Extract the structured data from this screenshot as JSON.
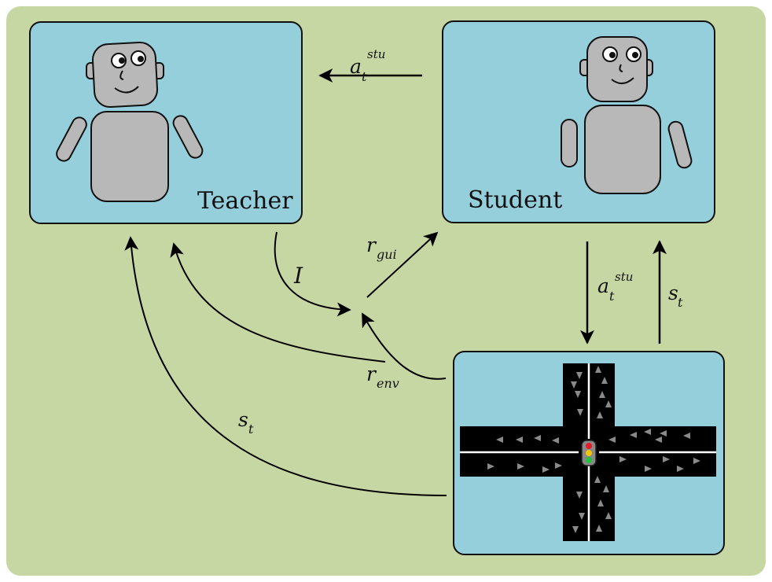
{
  "teacher": {
    "label": "Teacher"
  },
  "student": {
    "label": "Student"
  },
  "arrows": {
    "action_to_teacher": {
      "base": "a",
      "sub": "t",
      "sup": "stu"
    },
    "action_to_env": {
      "base": "a",
      "sub": "t",
      "sup": "stu"
    },
    "state_to_student": {
      "base": "s",
      "sub": "t"
    },
    "state_to_teacher": {
      "base": "s",
      "sub": "t"
    },
    "intervention": {
      "base": "I"
    },
    "reward_guide": {
      "base": "r",
      "sub": "gui"
    },
    "reward_env": {
      "base": "r",
      "sub": "env"
    }
  },
  "colors": {
    "background": "#c6d7a3",
    "panel": "#95cfdc",
    "robot": "#b8b8b8",
    "road": "#000000",
    "line": "#000000"
  },
  "icons": {
    "teacher": "robot-icon",
    "student": "robot-icon",
    "environment": "traffic-intersection-icon",
    "signal": "traffic-light-icon"
  }
}
